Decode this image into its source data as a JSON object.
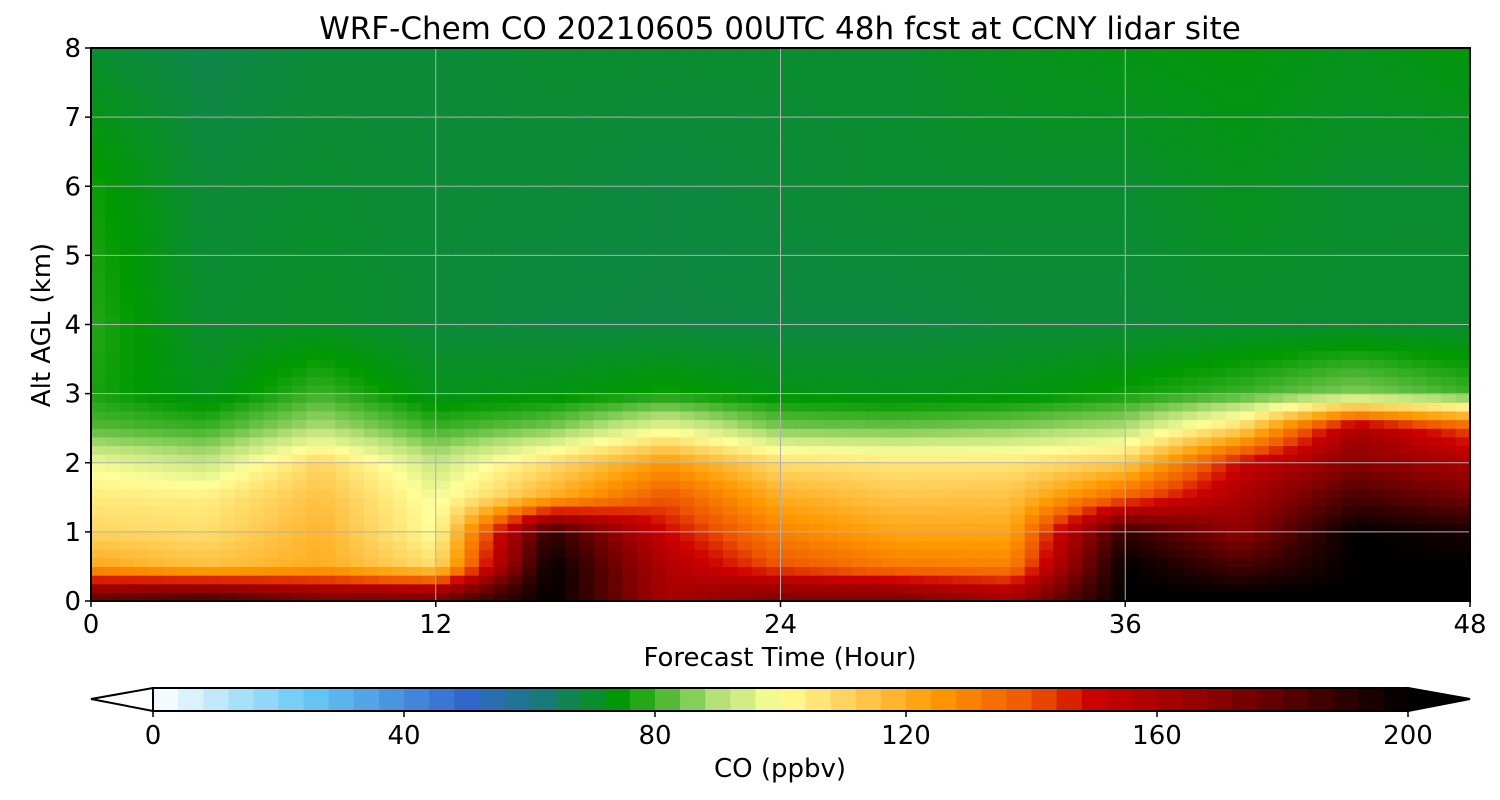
{
  "chart_data": {
    "type": "heatmap",
    "title": "WRF-Chem CO  20210605 00UTC 48h fcst at CCNY lidar site",
    "xlabel": "Forecast Time (Hour)",
    "ylabel": "Alt AGL (km)",
    "xlim": [
      0,
      48
    ],
    "ylim": [
      0,
      8
    ],
    "xticks": [
      0,
      12,
      24,
      36,
      48
    ],
    "yticks": [
      0,
      1,
      2,
      3,
      4,
      5,
      6,
      7,
      8
    ],
    "grid": true,
    "colorbar": {
      "label": "CO  (ppbv)",
      "range": [
        0,
        200
      ],
      "ticks": [
        0,
        40,
        80,
        120,
        160,
        200
      ],
      "extend": "both",
      "stops": [
        {
          "value": 0,
          "color": "#ffffff"
        },
        {
          "value": 25,
          "color": "#66c8f4"
        },
        {
          "value": 50,
          "color": "#3366cc"
        },
        {
          "value": 62,
          "color": "#1a7a7a"
        },
        {
          "value": 75,
          "color": "#009900"
        },
        {
          "value": 90,
          "color": "#b8e07a"
        },
        {
          "value": 100,
          "color": "#ffff99"
        },
        {
          "value": 112,
          "color": "#ffcc55"
        },
        {
          "value": 125,
          "color": "#ff9900"
        },
        {
          "value": 140,
          "color": "#ee5500"
        },
        {
          "value": 150,
          "color": "#cc0000"
        },
        {
          "value": 170,
          "color": "#880000"
        },
        {
          "value": 200,
          "color": "#000000"
        }
      ]
    },
    "series": [
      {
        "x": [
          0,
          4,
          8,
          12,
          16,
          20,
          24,
          28,
          32,
          36,
          40,
          44,
          48
        ],
        "y": 0.1,
        "values": [
          175,
          180,
          170,
          170,
          200,
          160,
          170,
          170,
          160,
          200,
          200,
          200,
          200
        ]
      },
      {
        "x": [
          0,
          4,
          8,
          12,
          16,
          20,
          24,
          28,
          32,
          36,
          40,
          44,
          48
        ],
        "y": 0.5,
        "values": [
          122,
          115,
          120,
          108,
          200,
          158,
          140,
          132,
          130,
          200,
          185,
          200,
          200
        ]
      },
      {
        "x": [
          0,
          4,
          8,
          12,
          16,
          20,
          24,
          28,
          32,
          36,
          40,
          44,
          48
        ],
        "y": 1.0,
        "values": [
          110,
          108,
          118,
          100,
          190,
          150,
          130,
          122,
          122,
          190,
          168,
          200,
          195
        ]
      },
      {
        "x": [
          0,
          4,
          8,
          12,
          16,
          20,
          24,
          28,
          32,
          36,
          40,
          44,
          48
        ],
        "y": 1.5,
        "values": [
          105,
          104,
          115,
          98,
          120,
          140,
          120,
          114,
          115,
          138,
          160,
          185,
          175
        ]
      },
      {
        "x": [
          0,
          4,
          8,
          12,
          16,
          20,
          24,
          28,
          32,
          36,
          40,
          44,
          48
        ],
        "y": 2.0,
        "values": [
          98,
          92,
          110,
          92,
          108,
          125,
          108,
          106,
          106,
          112,
          150,
          170,
          160
        ]
      },
      {
        "x": [
          0,
          4,
          8,
          12,
          16,
          20,
          24,
          28,
          32,
          36,
          40,
          44,
          48
        ],
        "y": 2.5,
        "values": [
          82,
          80,
          90,
          80,
          85,
          98,
          85,
          84,
          86,
          90,
          110,
          160,
          140
        ]
      },
      {
        "x": [
          0,
          4,
          8,
          12,
          16,
          20,
          24,
          28,
          32,
          36,
          40,
          44,
          48
        ],
        "y": 3.0,
        "values": [
          77,
          72,
          80,
          72,
          73,
          76,
          73,
          72,
          73,
          76,
          80,
          86,
          80
        ]
      },
      {
        "x": [
          0,
          4,
          8,
          12,
          16,
          20,
          24,
          28,
          32,
          36,
          40,
          44,
          48
        ],
        "y": 4.0,
        "values": [
          78,
          70,
          71,
          69,
          68,
          68,
          68,
          68,
          69,
          69,
          70,
          70,
          70
        ]
      },
      {
        "x": [
          0,
          4,
          8,
          12,
          16,
          20,
          24,
          28,
          32,
          36,
          40,
          44,
          48
        ],
        "y": 6.0,
        "values": [
          76,
          69,
          70,
          69,
          69,
          68,
          69,
          70,
          70,
          70,
          72,
          70,
          70
        ]
      },
      {
        "x": [
          0,
          4,
          8,
          12,
          16,
          20,
          24,
          28,
          32,
          36,
          40,
          44,
          48
        ],
        "y": 8.0,
        "values": [
          70,
          67,
          69,
          69,
          70,
          70,
          70,
          70,
          72,
          73,
          74,
          72,
          74
        ]
      }
    ]
  }
}
